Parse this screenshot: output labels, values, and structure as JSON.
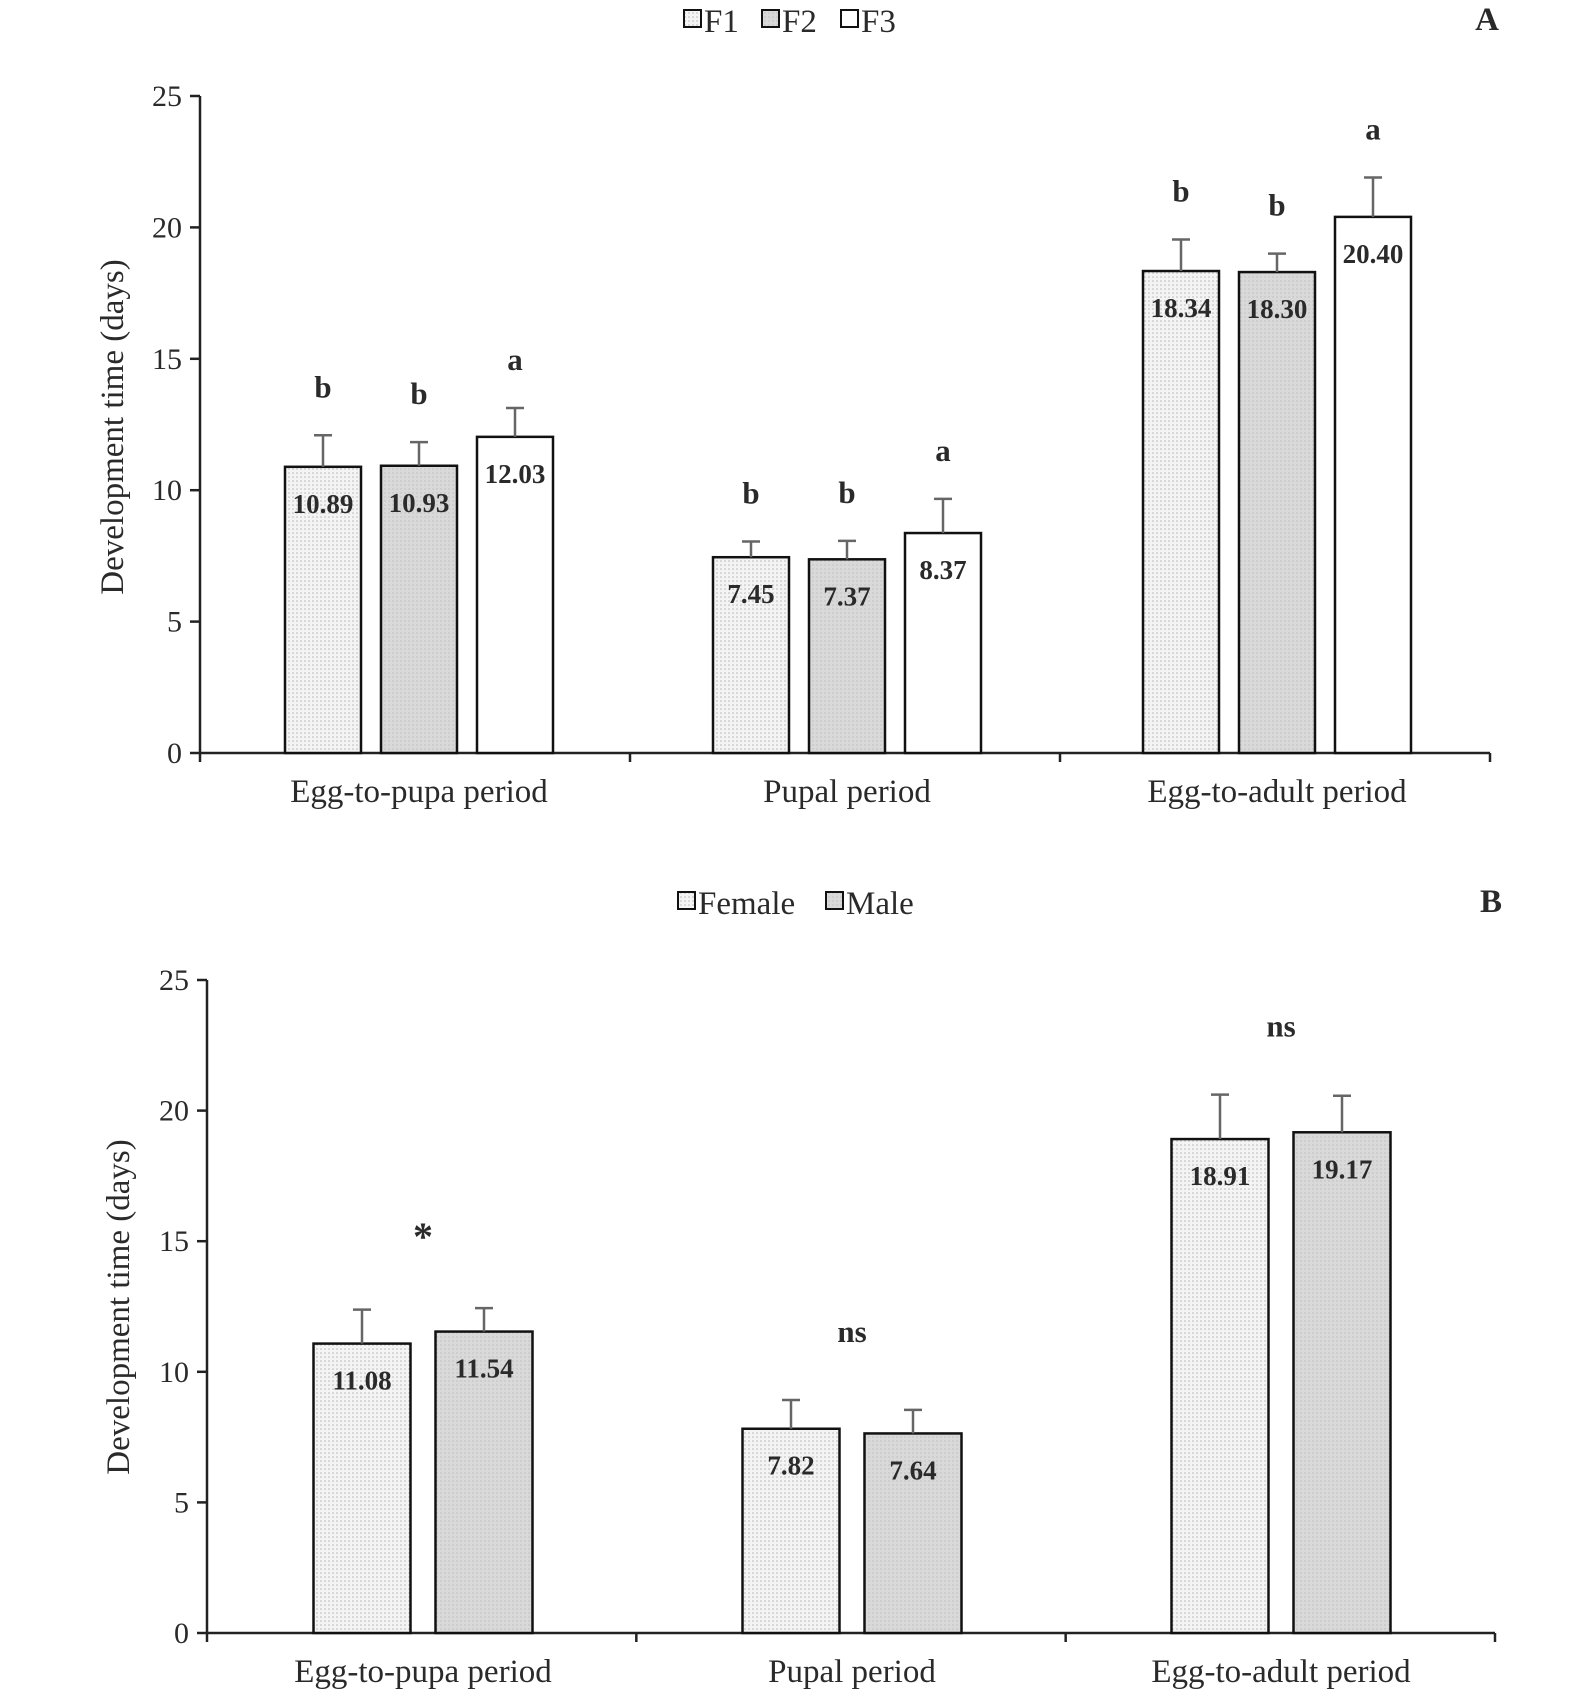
{
  "chart_data": [
    {
      "panel": "A",
      "type": "bar",
      "ylabel": "Development time (days)",
      "ylim": [
        0,
        25
      ],
      "yticks": [
        0,
        5,
        10,
        15,
        20,
        25
      ],
      "categories": [
        "Egg-to-pupa period",
        "Pupal period",
        "Egg-to-adult period"
      ],
      "legend": [
        "F1",
        "F2",
        "F3"
      ],
      "legend_position": "top-center",
      "series": [
        {
          "name": "F1",
          "fill": "#f2f2f2",
          "pattern": "dotted",
          "values": [
            10.89,
            7.45,
            18.34
          ],
          "errors": [
            1.2,
            0.6,
            1.2
          ],
          "labels": [
            "10.89",
            "7.45",
            "18.34"
          ],
          "sig": [
            "b",
            "b",
            "b"
          ]
        },
        {
          "name": "F2",
          "fill": "#d9d9d9",
          "pattern": "dotted",
          "values": [
            10.93,
            7.37,
            18.3
          ],
          "errors": [
            0.9,
            0.7,
            0.7
          ],
          "labels": [
            "10.93",
            "7.37",
            "18.30"
          ],
          "sig": [
            "b",
            "b",
            "b"
          ]
        },
        {
          "name": "F3",
          "fill": "#ffffff",
          "pattern": "none",
          "values": [
            12.03,
            8.37,
            20.4
          ],
          "errors": [
            1.1,
            1.3,
            1.5
          ],
          "labels": [
            "12.03",
            "8.37",
            "20.40"
          ],
          "sig": [
            "a",
            "a",
            "a"
          ]
        }
      ],
      "group_annotations": []
    },
    {
      "panel": "B",
      "type": "bar",
      "ylabel": "Development time (days)",
      "ylim": [
        0,
        25
      ],
      "yticks": [
        0,
        5,
        10,
        15,
        20,
        25
      ],
      "categories": [
        "Egg-to-pupa period",
        "Pupal period",
        "Egg-to-adult period"
      ],
      "legend": [
        "Female",
        "Male"
      ],
      "legend_position": "top-center",
      "series": [
        {
          "name": "Female",
          "fill": "#f2f2f2",
          "pattern": "dotted",
          "values": [
            11.08,
            7.82,
            18.91
          ],
          "errors": [
            1.3,
            1.1,
            1.7
          ],
          "labels": [
            "11.08",
            "7.82",
            "18.91"
          ],
          "sig": [
            "",
            "",
            ""
          ]
        },
        {
          "name": "Male",
          "fill": "#d9d9d9",
          "pattern": "dotted",
          "values": [
            11.54,
            7.64,
            19.17
          ],
          "errors": [
            0.9,
            0.9,
            1.4
          ],
          "labels": [
            "11.54",
            "7.64",
            "19.17"
          ],
          "sig": [
            "",
            "",
            ""
          ]
        }
      ],
      "group_annotations": [
        "*",
        "ns",
        "ns"
      ]
    }
  ]
}
